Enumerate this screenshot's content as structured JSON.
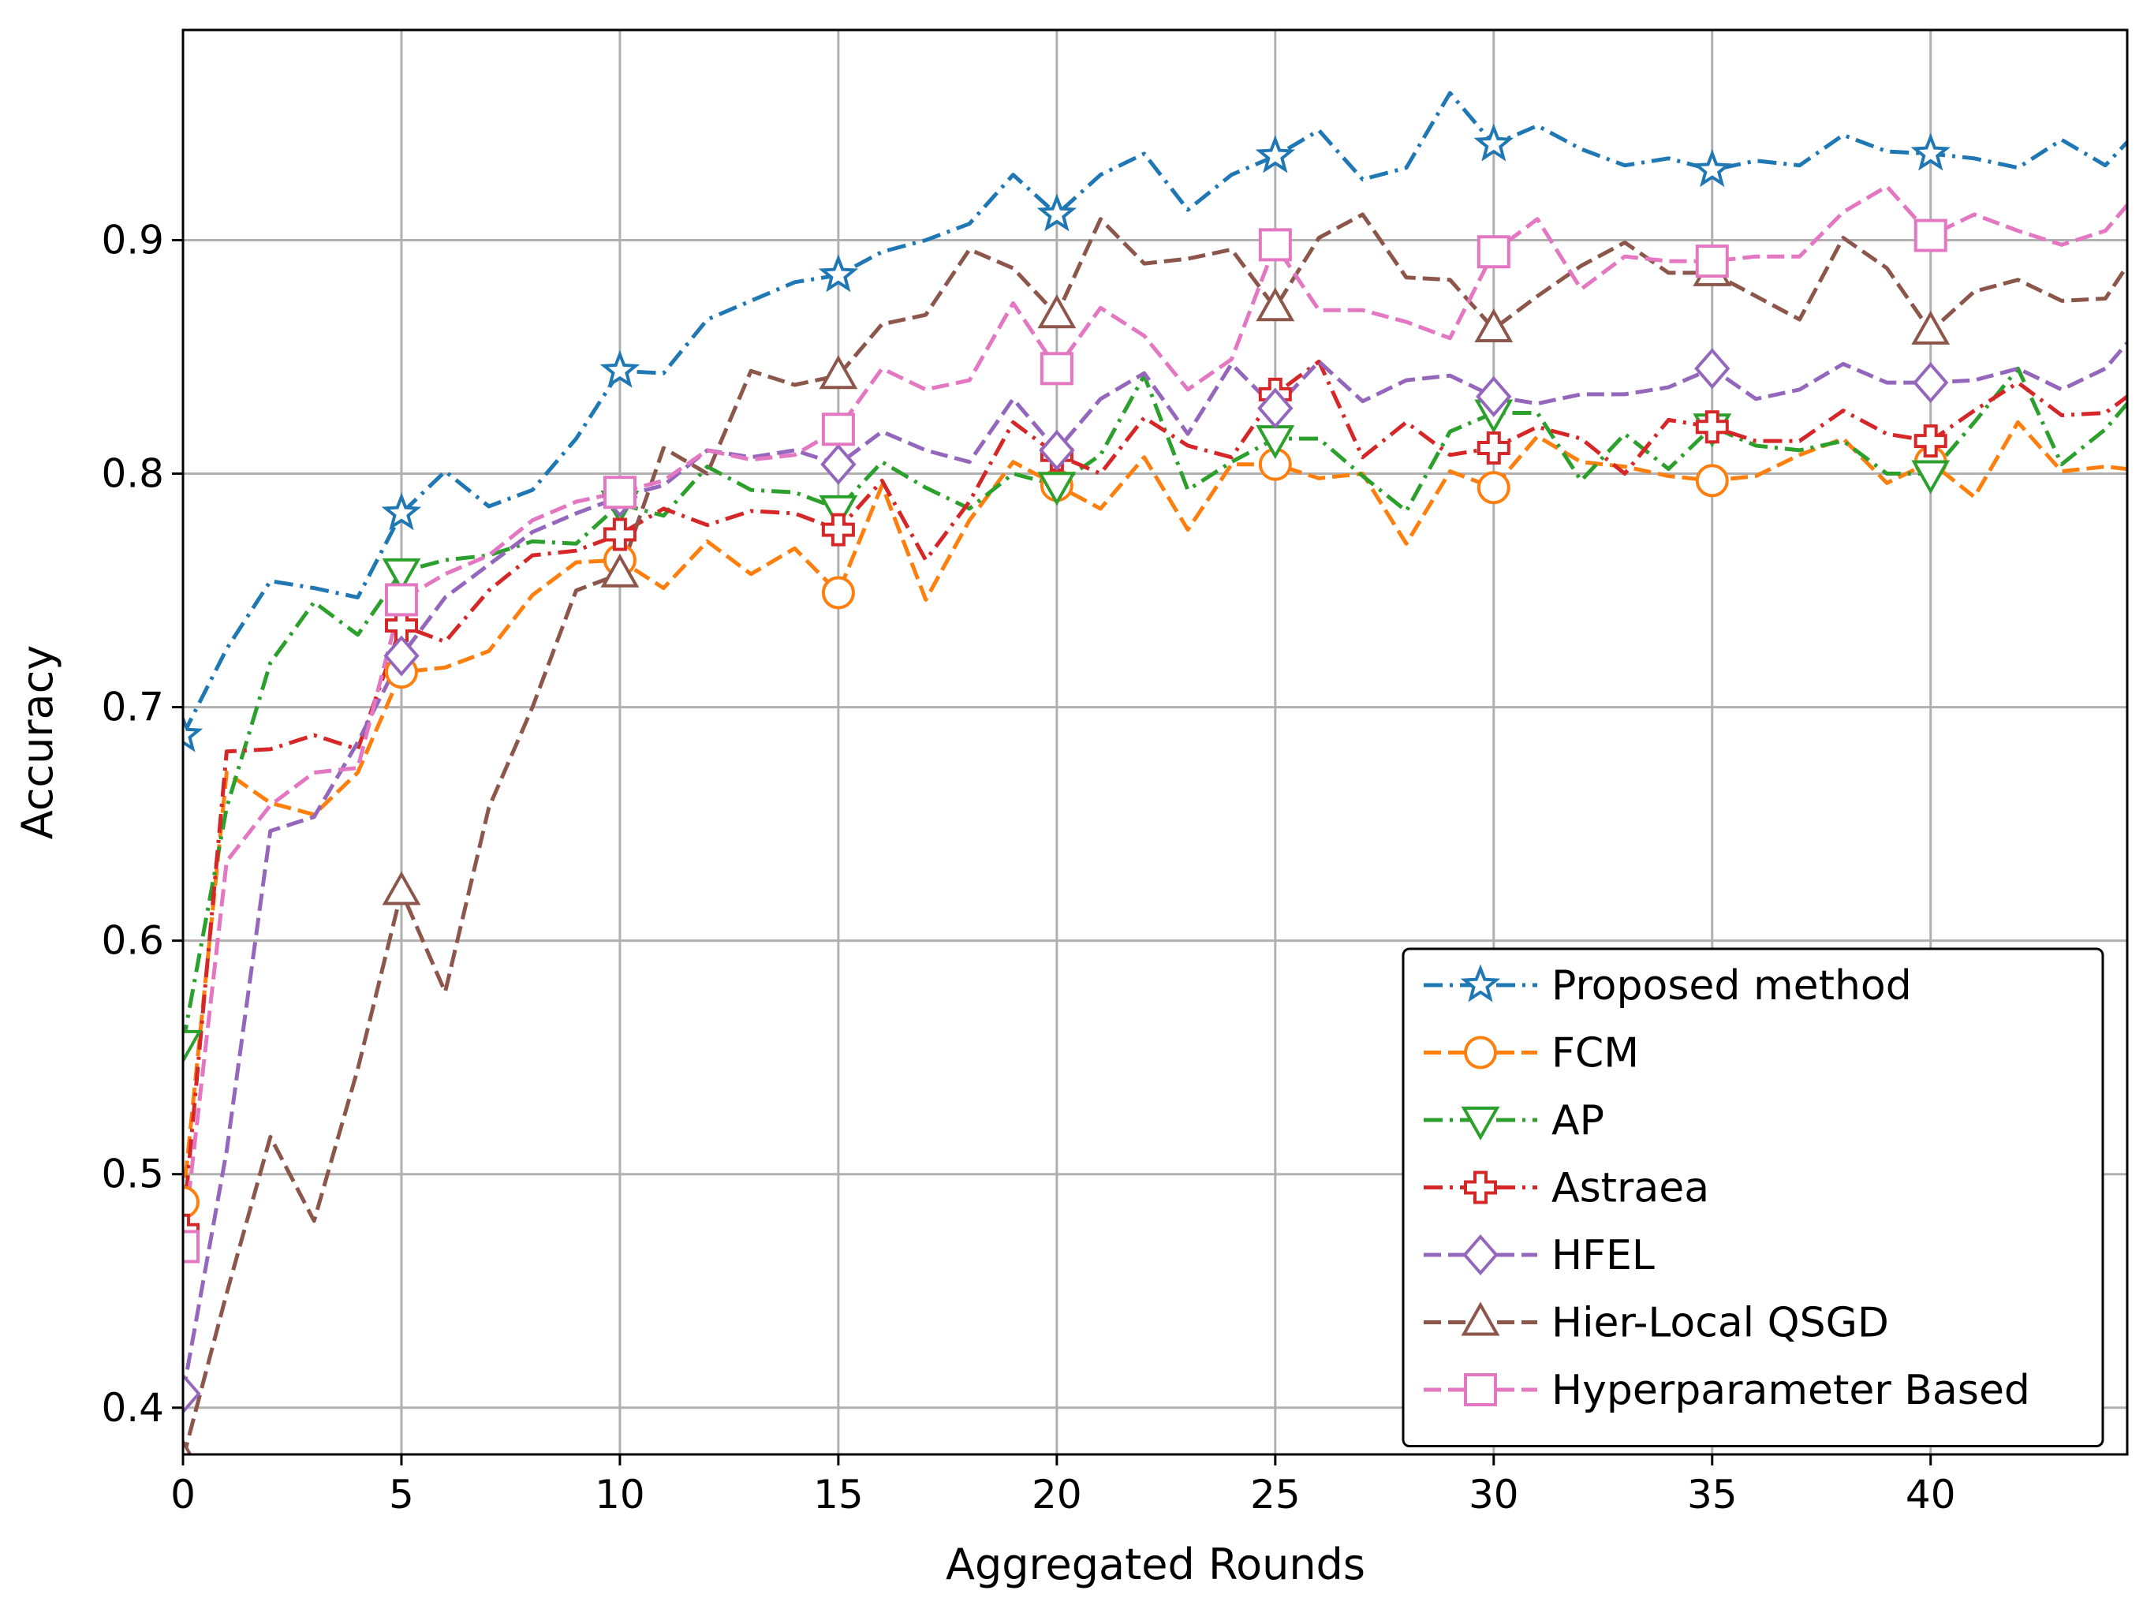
{
  "chart_data": {
    "type": "line",
    "title": "",
    "xlabel": "Aggregated Rounds",
    "ylabel": "Accuracy",
    "xlim": [
      0,
      44.5
    ],
    "ylim": [
      0.38,
      0.99
    ],
    "xticks": [
      0,
      5,
      10,
      15,
      20,
      25,
      30,
      35,
      40
    ],
    "yticks": [
      0.4,
      0.5,
      0.6,
      0.7,
      0.8,
      0.9
    ],
    "ytick_labels": [
      "0.4",
      "0.5",
      "0.6",
      "0.7",
      "0.8",
      "0.9"
    ],
    "grid": true,
    "legend_position": "lower-right",
    "marker_every": 5,
    "series": [
      {
        "name": "Proposed method",
        "color": "#1f77b4",
        "linestyle": "dashdot",
        "marker": "star",
        "x": [
          0,
          1,
          2,
          3,
          4,
          5,
          6,
          7,
          8,
          9,
          10,
          11,
          12,
          13,
          14,
          15,
          16,
          17,
          18,
          19,
          20,
          21,
          22,
          23,
          24,
          25,
          26,
          27,
          28,
          29,
          30,
          31,
          32,
          33,
          34,
          35,
          36,
          37,
          38,
          39,
          40,
          41,
          42,
          43,
          44,
          44.5
        ],
        "values": [
          0.688,
          0.725,
          0.754,
          0.751,
          0.747,
          0.783,
          0.801,
          0.786,
          0.793,
          0.815,
          0.844,
          0.843,
          0.866,
          0.874,
          0.882,
          0.885,
          0.895,
          0.9,
          0.907,
          0.928,
          0.911,
          0.928,
          0.937,
          0.913,
          0.928,
          0.936,
          0.947,
          0.926,
          0.931,
          0.963,
          0.941,
          0.949,
          0.939,
          0.932,
          0.935,
          0.93,
          0.934,
          0.932,
          0.945,
          0.938,
          0.937,
          0.935,
          0.931,
          0.943,
          0.932,
          0.942
        ]
      },
      {
        "name": "FCM",
        "color": "#ff7f0e",
        "linestyle": "dashed",
        "marker": "circle",
        "x": [
          0,
          1,
          2,
          3,
          4,
          5,
          6,
          7,
          8,
          9,
          10,
          11,
          12,
          13,
          14,
          15,
          16,
          17,
          18,
          19,
          20,
          21,
          22,
          23,
          24,
          25,
          26,
          27,
          28,
          29,
          30,
          31,
          32,
          33,
          34,
          35,
          36,
          37,
          38,
          39,
          40,
          41,
          42,
          43,
          44,
          44.5
        ],
        "values": [
          0.488,
          0.672,
          0.659,
          0.654,
          0.672,
          0.715,
          0.717,
          0.724,
          0.748,
          0.762,
          0.763,
          0.751,
          0.771,
          0.757,
          0.768,
          0.749,
          0.795,
          0.746,
          0.78,
          0.805,
          0.795,
          0.785,
          0.807,
          0.776,
          0.804,
          0.804,
          0.798,
          0.8,
          0.77,
          0.801,
          0.794,
          0.816,
          0.805,
          0.803,
          0.799,
          0.797,
          0.799,
          0.808,
          0.815,
          0.796,
          0.805,
          0.79,
          0.822,
          0.801,
          0.803,
          0.802
        ]
      },
      {
        "name": "AP",
        "color": "#2ca02c",
        "linestyle": "dashdot",
        "marker": "triangle-down",
        "x": [
          0,
          1,
          2,
          3,
          4,
          5,
          6,
          7,
          8,
          9,
          10,
          11,
          12,
          13,
          14,
          15,
          16,
          17,
          18,
          19,
          20,
          21,
          22,
          23,
          24,
          25,
          26,
          27,
          28,
          29,
          30,
          31,
          32,
          33,
          34,
          35,
          36,
          37,
          38,
          39,
          40,
          41,
          42,
          43,
          44,
          44.5
        ],
        "values": [
          0.556,
          0.657,
          0.719,
          0.745,
          0.731,
          0.758,
          0.763,
          0.765,
          0.771,
          0.77,
          0.787,
          0.782,
          0.803,
          0.793,
          0.792,
          0.785,
          0.805,
          0.794,
          0.785,
          0.8,
          0.795,
          0.808,
          0.842,
          0.793,
          0.805,
          0.815,
          0.815,
          0.799,
          0.784,
          0.818,
          0.826,
          0.826,
          0.797,
          0.817,
          0.802,
          0.82,
          0.812,
          0.81,
          0.814,
          0.8,
          0.8,
          0.822,
          0.845,
          0.804,
          0.819,
          0.83
        ]
      },
      {
        "name": "Astraea",
        "color": "#d62728",
        "linestyle": "dashdot",
        "marker": "plus",
        "x": [
          0,
          1,
          2,
          3,
          4,
          5,
          6,
          7,
          8,
          9,
          10,
          11,
          12,
          13,
          14,
          15,
          16,
          17,
          18,
          19,
          20,
          21,
          22,
          23,
          24,
          25,
          26,
          27,
          28,
          29,
          30,
          31,
          32,
          33,
          34,
          35,
          36,
          37,
          38,
          39,
          40,
          41,
          42,
          43,
          44,
          44.5
        ],
        "values": [
          0.476,
          0.681,
          0.682,
          0.688,
          0.682,
          0.735,
          0.728,
          0.75,
          0.765,
          0.767,
          0.774,
          0.785,
          0.778,
          0.784,
          0.783,
          0.776,
          0.797,
          0.763,
          0.788,
          0.822,
          0.808,
          0.8,
          0.824,
          0.812,
          0.807,
          0.834,
          0.848,
          0.807,
          0.822,
          0.808,
          0.811,
          0.82,
          0.815,
          0.8,
          0.823,
          0.82,
          0.814,
          0.814,
          0.827,
          0.817,
          0.814,
          0.827,
          0.839,
          0.825,
          0.826,
          0.833
        ]
      },
      {
        "name": "HFEL",
        "color": "#9467bd",
        "linestyle": "dashed",
        "marker": "diamond",
        "x": [
          0,
          1,
          2,
          3,
          4,
          5,
          6,
          7,
          8,
          9,
          10,
          11,
          12,
          13,
          14,
          15,
          16,
          17,
          18,
          19,
          20,
          21,
          22,
          23,
          24,
          25,
          26,
          27,
          28,
          29,
          30,
          31,
          32,
          33,
          34,
          35,
          36,
          37,
          38,
          39,
          40,
          41,
          42,
          43,
          44,
          44.5
        ],
        "values": [
          0.406,
          0.51,
          0.647,
          0.653,
          0.685,
          0.722,
          0.747,
          0.761,
          0.775,
          0.783,
          0.79,
          0.795,
          0.81,
          0.807,
          0.81,
          0.804,
          0.818,
          0.81,
          0.805,
          0.832,
          0.81,
          0.832,
          0.843,
          0.817,
          0.847,
          0.828,
          0.848,
          0.831,
          0.84,
          0.842,
          0.833,
          0.83,
          0.834,
          0.834,
          0.837,
          0.845,
          0.832,
          0.836,
          0.847,
          0.839,
          0.839,
          0.84,
          0.845,
          0.836,
          0.845,
          0.856
        ]
      },
      {
        "name": "Hier-Local QSGD",
        "color": "#8c564b",
        "linestyle": "dashed",
        "marker": "triangle-up",
        "x": [
          0,
          1,
          2,
          3,
          4,
          5,
          6,
          7,
          8,
          9,
          10,
          11,
          12,
          13,
          14,
          15,
          16,
          17,
          18,
          19,
          20,
          21,
          22,
          23,
          24,
          25,
          26,
          27,
          28,
          29,
          30,
          31,
          32,
          33,
          34,
          35,
          36,
          37,
          38,
          39,
          40,
          41,
          42,
          43,
          44,
          44.5
        ],
        "values": [
          0.378,
          0.449,
          0.516,
          0.48,
          0.545,
          0.621,
          0.578,
          0.657,
          0.7,
          0.75,
          0.757,
          0.811,
          0.8,
          0.844,
          0.838,
          0.842,
          0.864,
          0.868,
          0.896,
          0.888,
          0.868,
          0.909,
          0.89,
          0.892,
          0.896,
          0.871,
          0.901,
          0.911,
          0.884,
          0.883,
          0.862,
          0.876,
          0.889,
          0.899,
          0.886,
          0.886,
          0.876,
          0.866,
          0.901,
          0.888,
          0.861,
          0.878,
          0.883,
          0.874,
          0.875,
          0.889
        ]
      },
      {
        "name": "Hyperparameter Based",
        "color": "#e377c2",
        "linestyle": "dashed",
        "marker": "square",
        "x": [
          0,
          1,
          2,
          3,
          4,
          5,
          6,
          7,
          8,
          9,
          10,
          11,
          12,
          13,
          14,
          15,
          16,
          17,
          18,
          19,
          20,
          21,
          22,
          23,
          24,
          25,
          26,
          27,
          28,
          29,
          30,
          31,
          32,
          33,
          34,
          35,
          36,
          37,
          38,
          39,
          40,
          41,
          42,
          43,
          44,
          44.5
        ],
        "values": [
          0.469,
          0.634,
          0.658,
          0.672,
          0.674,
          0.746,
          0.757,
          0.765,
          0.78,
          0.788,
          0.792,
          0.797,
          0.81,
          0.806,
          0.808,
          0.819,
          0.845,
          0.836,
          0.84,
          0.873,
          0.845,
          0.871,
          0.859,
          0.836,
          0.849,
          0.898,
          0.87,
          0.87,
          0.865,
          0.858,
          0.895,
          0.909,
          0.879,
          0.893,
          0.891,
          0.891,
          0.893,
          0.893,
          0.912,
          0.923,
          0.902,
          0.911,
          0.904,
          0.898,
          0.904,
          0.915
        ]
      }
    ]
  }
}
